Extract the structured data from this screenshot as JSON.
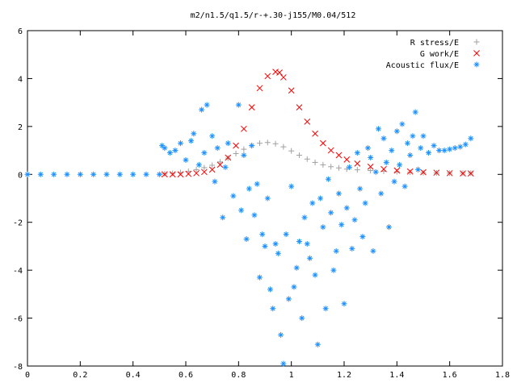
{
  "chart_data": {
    "type": "scatter",
    "title": "m2/n1.5/q1.5/r-+.30-j155/M0.04/512",
    "xlabel": "",
    "ylabel": "",
    "xlim": [
      0,
      1.8
    ],
    "ylim": [
      -8,
      6
    ],
    "xticks": [
      "0",
      "0.2",
      "0.4",
      "0.6",
      "0.8",
      "1",
      "1.2",
      "1.4",
      "1.6",
      "1.8"
    ],
    "yticks": [
      "-8",
      "-6",
      "-4",
      "-2",
      "0",
      "2",
      "4",
      "6"
    ],
    "grid": false,
    "legend_position": "top-right",
    "series": [
      {
        "name": "R stress/E",
        "marker": "plus",
        "color": "#a0a0a0",
        "x": [
          0.52,
          0.55,
          0.58,
          0.61,
          0.64,
          0.67,
          0.7,
          0.73,
          0.76,
          0.79,
          0.82,
          0.85,
          0.88,
          0.91,
          0.94,
          0.97,
          1.0,
          1.03,
          1.06,
          1.09,
          1.12,
          1.15,
          1.18,
          1.21,
          1.25,
          1.3,
          1.35,
          1.4,
          1.45,
          1.5,
          1.55,
          1.6,
          1.65,
          1.68
        ],
        "y": [
          0.02,
          0.04,
          0.08,
          0.13,
          0.2,
          0.28,
          0.38,
          0.52,
          0.68,
          0.87,
          1.05,
          1.2,
          1.3,
          1.33,
          1.28,
          1.15,
          0.98,
          0.8,
          0.64,
          0.5,
          0.4,
          0.32,
          0.27,
          0.22,
          0.19,
          0.16,
          0.13,
          0.11,
          0.09,
          0.07,
          0.06,
          0.05,
          0.05,
          0.05
        ]
      },
      {
        "name": "G work/E",
        "marker": "cross",
        "color": "#ff0000",
        "x": [
          0.52,
          0.55,
          0.58,
          0.61,
          0.64,
          0.67,
          0.7,
          0.73,
          0.76,
          0.79,
          0.82,
          0.85,
          0.88,
          0.91,
          0.94,
          0.955,
          0.97,
          1.0,
          1.03,
          1.06,
          1.09,
          1.12,
          1.15,
          1.18,
          1.21,
          1.25,
          1.3,
          1.35,
          1.4,
          1.45,
          1.5,
          1.55,
          1.6,
          1.65,
          1.68
        ],
        "y": [
          0.0,
          0.0,
          0.0,
          0.02,
          0.05,
          0.1,
          0.2,
          0.4,
          0.7,
          1.2,
          1.9,
          2.8,
          3.6,
          4.1,
          4.28,
          4.25,
          4.05,
          3.5,
          2.8,
          2.2,
          1.7,
          1.3,
          1.0,
          0.8,
          0.62,
          0.45,
          0.32,
          0.22,
          0.16,
          0.12,
          0.09,
          0.07,
          0.05,
          0.04,
          0.04
        ]
      },
      {
        "name": "Acoustic flux/E",
        "marker": "star",
        "color": "#1e90ff",
        "x": [
          0.0,
          0.05,
          0.1,
          0.15,
          0.2,
          0.25,
          0.3,
          0.35,
          0.4,
          0.45,
          0.5,
          0.51,
          0.52,
          0.54,
          0.56,
          0.58,
          0.6,
          0.62,
          0.63,
          0.65,
          0.66,
          0.67,
          0.68,
          0.7,
          0.71,
          0.72,
          0.74,
          0.75,
          0.76,
          0.78,
          0.8,
          0.81,
          0.82,
          0.83,
          0.84,
          0.85,
          0.86,
          0.87,
          0.88,
          0.89,
          0.9,
          0.91,
          0.92,
          0.93,
          0.94,
          0.95,
          0.96,
          0.97,
          0.98,
          0.99,
          1.0,
          1.01,
          1.02,
          1.03,
          1.04,
          1.05,
          1.06,
          1.07,
          1.08,
          1.09,
          1.1,
          1.11,
          1.12,
          1.13,
          1.14,
          1.15,
          1.16,
          1.17,
          1.18,
          1.19,
          1.2,
          1.21,
          1.22,
          1.23,
          1.24,
          1.25,
          1.26,
          1.27,
          1.28,
          1.29,
          1.3,
          1.31,
          1.32,
          1.33,
          1.34,
          1.35,
          1.36,
          1.37,
          1.38,
          1.39,
          1.4,
          1.41,
          1.42,
          1.43,
          1.44,
          1.45,
          1.46,
          1.47,
          1.48,
          1.49,
          1.5,
          1.52,
          1.54,
          1.56,
          1.58,
          1.6,
          1.62,
          1.64,
          1.66,
          1.68
        ],
        "y": [
          0.0,
          0.0,
          0.0,
          0.0,
          0.0,
          0.0,
          0.0,
          0.0,
          0.0,
          0.0,
          0.0,
          1.2,
          1.1,
          0.9,
          1.0,
          1.3,
          0.6,
          1.4,
          1.7,
          0.4,
          2.7,
          0.9,
          2.9,
          1.6,
          -0.3,
          1.1,
          -1.8,
          0.3,
          1.3,
          -0.9,
          2.9,
          -1.5,
          0.8,
          -2.7,
          -0.6,
          1.2,
          -1.7,
          -0.4,
          -4.3,
          -2.5,
          -3.0,
          -1.0,
          -4.8,
          -5.6,
          -2.9,
          -3.3,
          -6.7,
          -7.9,
          -2.5,
          -5.2,
          -0.5,
          -4.7,
          -3.9,
          -2.8,
          -6.0,
          -1.8,
          -2.9,
          -3.5,
          -1.2,
          -4.2,
          -7.1,
          -1.0,
          -2.2,
          -5.6,
          -0.2,
          -1.6,
          -4.0,
          -3.2,
          -0.8,
          -2.1,
          -5.4,
          -1.4,
          0.3,
          -3.1,
          -1.9,
          0.9,
          -0.6,
          -2.6,
          -1.2,
          1.1,
          0.7,
          -3.2,
          0.1,
          1.9,
          -0.8,
          1.5,
          0.5,
          -2.2,
          1.0,
          -0.3,
          1.8,
          0.4,
          2.1,
          -0.5,
          1.3,
          0.8,
          1.6,
          2.6,
          0.2,
          1.1,
          1.6,
          0.9,
          1.2,
          1.0,
          1.0,
          1.05,
          1.1,
          1.15,
          1.25,
          1.5
        ]
      }
    ]
  }
}
